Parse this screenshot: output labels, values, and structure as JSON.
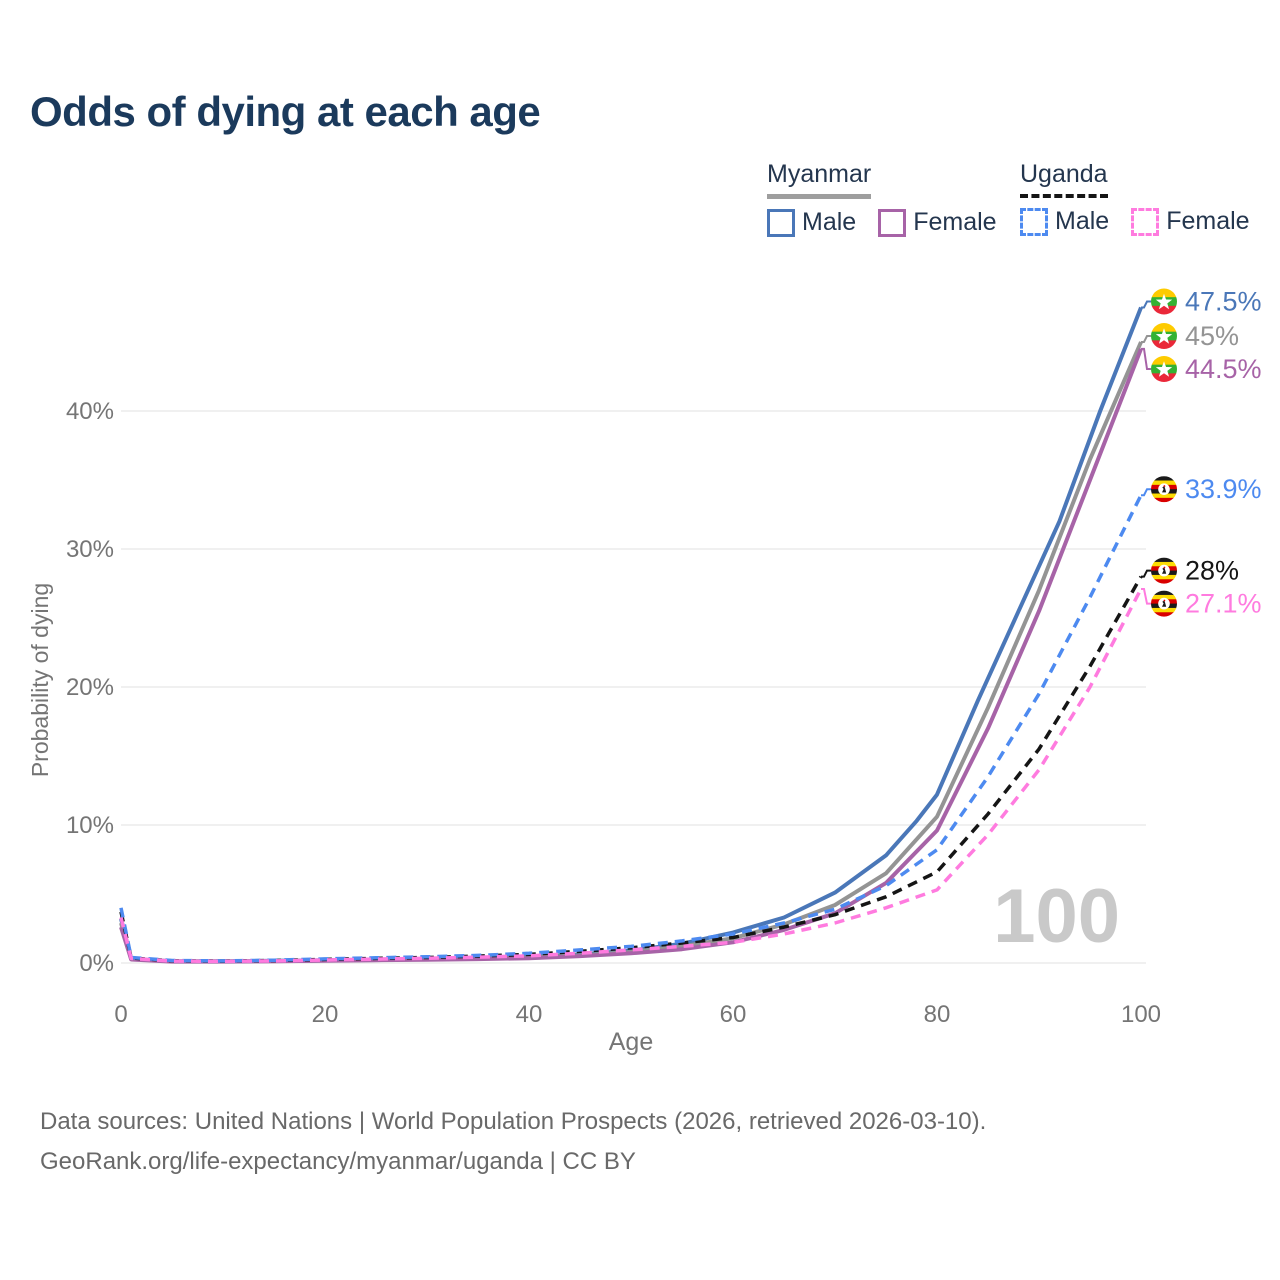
{
  "title": "Odds of dying at each age",
  "legend": {
    "groups": [
      {
        "label": "Myanmar",
        "underline_color": "#9e9e9e",
        "underline_style": "solid",
        "items": [
          {
            "label": "Male",
            "color": "#4a77b8",
            "dashed": false
          },
          {
            "label": "Female",
            "color": "#a763a7",
            "dashed": false
          }
        ]
      },
      {
        "label": "Uganda",
        "underline_color": "#151515",
        "underline_style": "dashed",
        "items": [
          {
            "label": "Male",
            "color": "#4d8af0",
            "dashed": true
          },
          {
            "label": "Female",
            "color": "#ff7bdf",
            "dashed": true
          }
        ]
      }
    ]
  },
  "watermark": "100",
  "footer": {
    "line1": "Data sources: United Nations | World Population Prospects (2026, retrieved 2026-03-10).",
    "line2": "GeoRank.org/life-expectancy/myanmar/uganda | CC BY"
  },
  "chart_data": {
    "type": "line",
    "title": "Odds of dying at each age",
    "xlabel": "Age",
    "ylabel": "Probability of dying",
    "xlim": [
      0,
      100
    ],
    "ylim": [
      0,
      48
    ],
    "grid": "horizontal",
    "x_ticks": [
      0,
      20,
      40,
      60,
      80,
      100
    ],
    "y_ticks": [
      {
        "value": 0,
        "label": "0%"
      },
      {
        "value": 10,
        "label": "10%"
      },
      {
        "value": 20,
        "label": "20%"
      },
      {
        "value": 30,
        "label": "30%"
      },
      {
        "value": 40,
        "label": "40%"
      }
    ],
    "axis_text_color": "#757575",
    "grid_color": "#ebebeb",
    "watermark_color": "#c9c9c9",
    "series": [
      {
        "name": "Myanmar Male",
        "country": "myanmar",
        "sex": "male",
        "color": "#4a77b8",
        "dashed": false,
        "end_label": "47.5%",
        "end_value": 47.5,
        "points": [
          [
            0,
            3.2
          ],
          [
            1,
            0.3
          ],
          [
            5,
            0.13
          ],
          [
            10,
            0.13
          ],
          [
            15,
            0.16
          ],
          [
            20,
            0.2
          ],
          [
            25,
            0.25
          ],
          [
            30,
            0.3
          ],
          [
            35,
            0.36
          ],
          [
            40,
            0.45
          ],
          [
            45,
            0.62
          ],
          [
            50,
            0.9
          ],
          [
            55,
            1.4
          ],
          [
            60,
            2.2
          ],
          [
            65,
            3.3
          ],
          [
            70,
            5.1
          ],
          [
            75,
            7.8
          ],
          [
            78,
            10.3
          ],
          [
            80,
            12.2
          ],
          [
            84,
            19
          ],
          [
            88,
            25.5
          ],
          [
            92,
            32
          ],
          [
            96,
            40
          ],
          [
            100,
            47.5
          ]
        ]
      },
      {
        "name": "Myanmar (both sexes)",
        "country": "myanmar",
        "sex": "both",
        "color": "#949494",
        "dashed": false,
        "end_label": "45%",
        "end_value": 45,
        "points": [
          [
            0,
            2.9
          ],
          [
            1,
            0.28
          ],
          [
            5,
            0.12
          ],
          [
            10,
            0.12
          ],
          [
            15,
            0.14
          ],
          [
            20,
            0.18
          ],
          [
            25,
            0.22
          ],
          [
            30,
            0.27
          ],
          [
            35,
            0.32
          ],
          [
            40,
            0.4
          ],
          [
            45,
            0.55
          ],
          [
            50,
            0.8
          ],
          [
            55,
            1.2
          ],
          [
            60,
            1.8
          ],
          [
            65,
            2.8
          ],
          [
            70,
            4.2
          ],
          [
            75,
            6.5
          ],
          [
            80,
            10.6
          ],
          [
            85,
            18.5
          ],
          [
            90,
            27
          ],
          [
            95,
            36.5
          ],
          [
            100,
            45
          ]
        ]
      },
      {
        "name": "Myanmar Female",
        "country": "myanmar",
        "sex": "female",
        "color": "#a763a7",
        "dashed": false,
        "end_label": "44.5%",
        "end_value": 44.5,
        "points": [
          [
            0,
            2.6
          ],
          [
            1,
            0.25
          ],
          [
            5,
            0.1
          ],
          [
            10,
            0.1
          ],
          [
            15,
            0.12
          ],
          [
            20,
            0.16
          ],
          [
            25,
            0.2
          ],
          [
            30,
            0.24
          ],
          [
            35,
            0.28
          ],
          [
            40,
            0.35
          ],
          [
            45,
            0.5
          ],
          [
            50,
            0.7
          ],
          [
            55,
            1.0
          ],
          [
            60,
            1.5
          ],
          [
            65,
            2.4
          ],
          [
            70,
            3.6
          ],
          [
            75,
            5.8
          ],
          [
            80,
            9.6
          ],
          [
            85,
            17
          ],
          [
            90,
            25.5
          ],
          [
            95,
            35
          ],
          [
            100,
            44.5
          ]
        ]
      },
      {
        "name": "Uganda (both sexes)",
        "country": "uganda",
        "sex": "both",
        "color": "#151515",
        "dashed": true,
        "end_label": "28%",
        "end_value": 28,
        "points": [
          [
            0,
            3.7
          ],
          [
            1,
            0.36
          ],
          [
            5,
            0.16
          ],
          [
            10,
            0.14
          ],
          [
            15,
            0.18
          ],
          [
            20,
            0.26
          ],
          [
            25,
            0.33
          ],
          [
            30,
            0.4
          ],
          [
            35,
            0.5
          ],
          [
            40,
            0.62
          ],
          [
            45,
            0.85
          ],
          [
            50,
            1.1
          ],
          [
            55,
            1.45
          ],
          [
            60,
            1.85
          ],
          [
            65,
            2.6
          ],
          [
            70,
            3.5
          ],
          [
            75,
            4.8
          ],
          [
            80,
            6.6
          ],
          [
            85,
            10.8
          ],
          [
            90,
            15.5
          ],
          [
            95,
            21.5
          ],
          [
            100,
            28
          ]
        ]
      },
      {
        "name": "Uganda Male",
        "country": "uganda",
        "sex": "male",
        "color": "#4d8af0",
        "dashed": true,
        "end_label": "33.9%",
        "end_value": 33.9,
        "points": [
          [
            0,
            4.0
          ],
          [
            1,
            0.4
          ],
          [
            5,
            0.18
          ],
          [
            10,
            0.15
          ],
          [
            15,
            0.2
          ],
          [
            20,
            0.3
          ],
          [
            25,
            0.38
          ],
          [
            30,
            0.45
          ],
          [
            35,
            0.55
          ],
          [
            40,
            0.7
          ],
          [
            45,
            0.95
          ],
          [
            50,
            1.2
          ],
          [
            55,
            1.6
          ],
          [
            60,
            2.1
          ],
          [
            65,
            2.9
          ],
          [
            70,
            3.9
          ],
          [
            75,
            5.6
          ],
          [
            80,
            8.2
          ],
          [
            85,
            13.5
          ],
          [
            90,
            19.5
          ],
          [
            95,
            26.5
          ],
          [
            100,
            33.9
          ]
        ]
      },
      {
        "name": "Uganda Female",
        "country": "uganda",
        "sex": "female",
        "color": "#ff7bdf",
        "dashed": true,
        "end_label": "27.1%",
        "end_value": 27.1,
        "points": [
          [
            0,
            3.3
          ],
          [
            1,
            0.33
          ],
          [
            5,
            0.14
          ],
          [
            10,
            0.12
          ],
          [
            15,
            0.15
          ],
          [
            20,
            0.22
          ],
          [
            25,
            0.28
          ],
          [
            30,
            0.34
          ],
          [
            35,
            0.42
          ],
          [
            40,
            0.52
          ],
          [
            45,
            0.7
          ],
          [
            50,
            0.95
          ],
          [
            55,
            1.2
          ],
          [
            60,
            1.5
          ],
          [
            65,
            2.1
          ],
          [
            70,
            2.9
          ],
          [
            75,
            4.0
          ],
          [
            80,
            5.3
          ],
          [
            85,
            9.3
          ],
          [
            90,
            14
          ],
          [
            95,
            20
          ],
          [
            100,
            27.1
          ]
        ]
      }
    ],
    "flag_colors": {
      "myanmar": [
        "#FECB00",
        "#34B233",
        "#EA2839"
      ],
      "uganda": [
        "#1a1a1a",
        "#FCDC04",
        "#D90000",
        "#1a1a1a",
        "#FCDC04",
        "#D90000"
      ]
    }
  }
}
